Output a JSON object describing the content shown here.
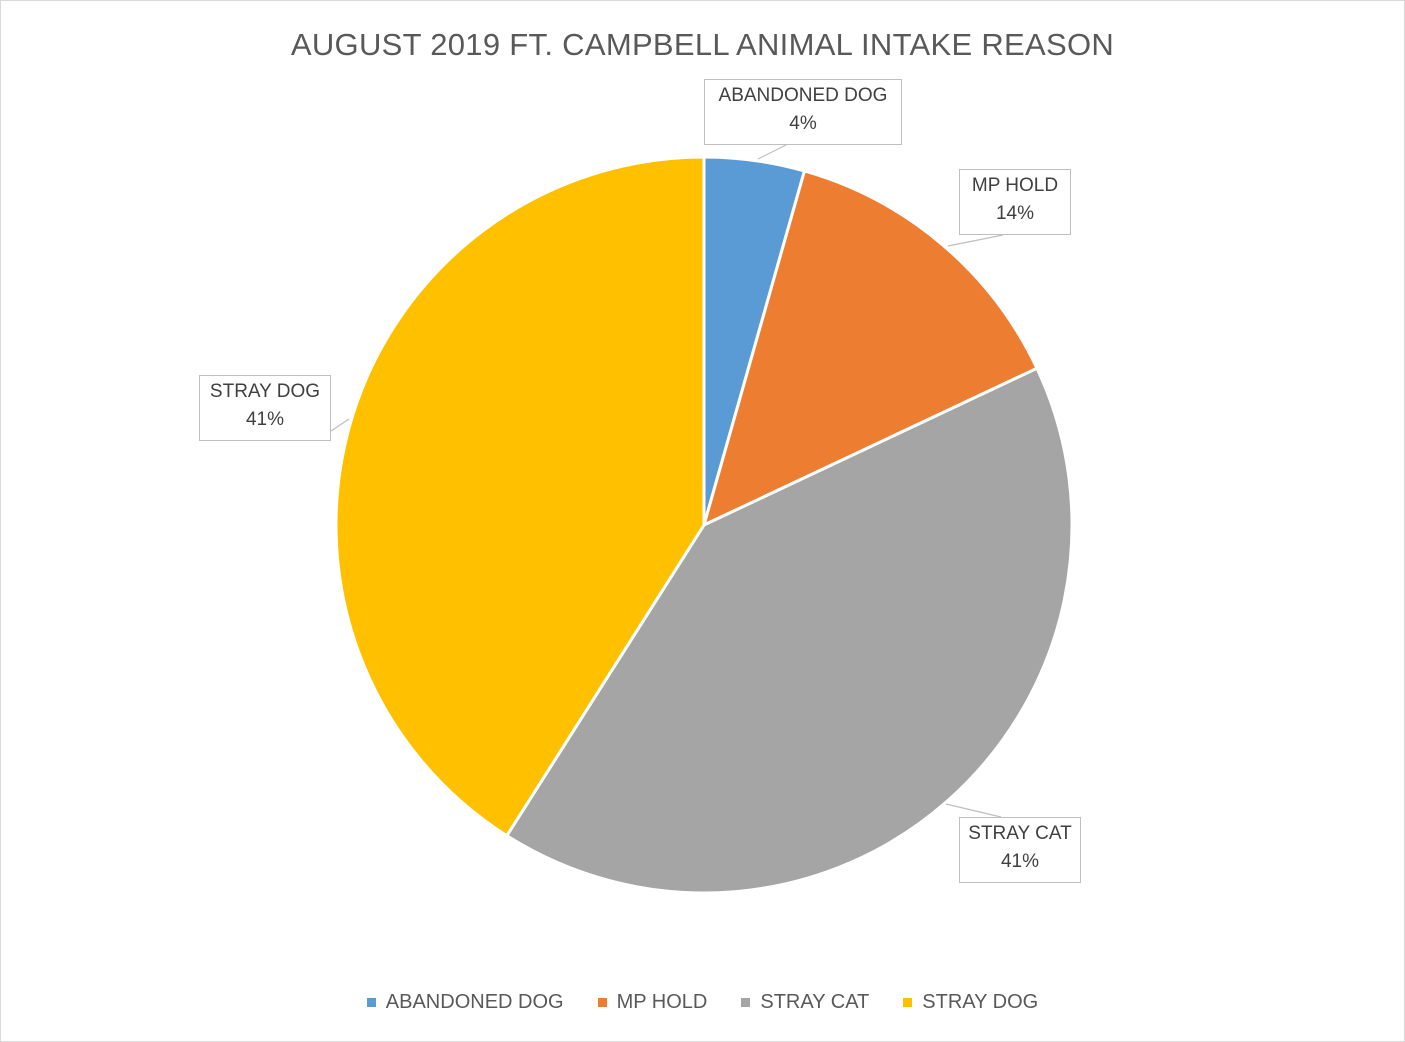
{
  "chart_data": {
    "type": "pie",
    "title": "AUGUST 2019 FT. CAMPBELL ANIMAL INTAKE REASON",
    "categories": [
      "ABANDONED DOG",
      "MP HOLD",
      "STRAY CAT",
      "STRAY DOG"
    ],
    "values": [
      4.4,
      13.6,
      41.0,
      41.0
    ],
    "labels": [
      "4%",
      "14%",
      "41%",
      "41%"
    ],
    "colors": [
      "#5b9bd5",
      "#ed7d31",
      "#a5a5a5",
      "#ffc000"
    ],
    "legend_position": "bottom"
  }
}
